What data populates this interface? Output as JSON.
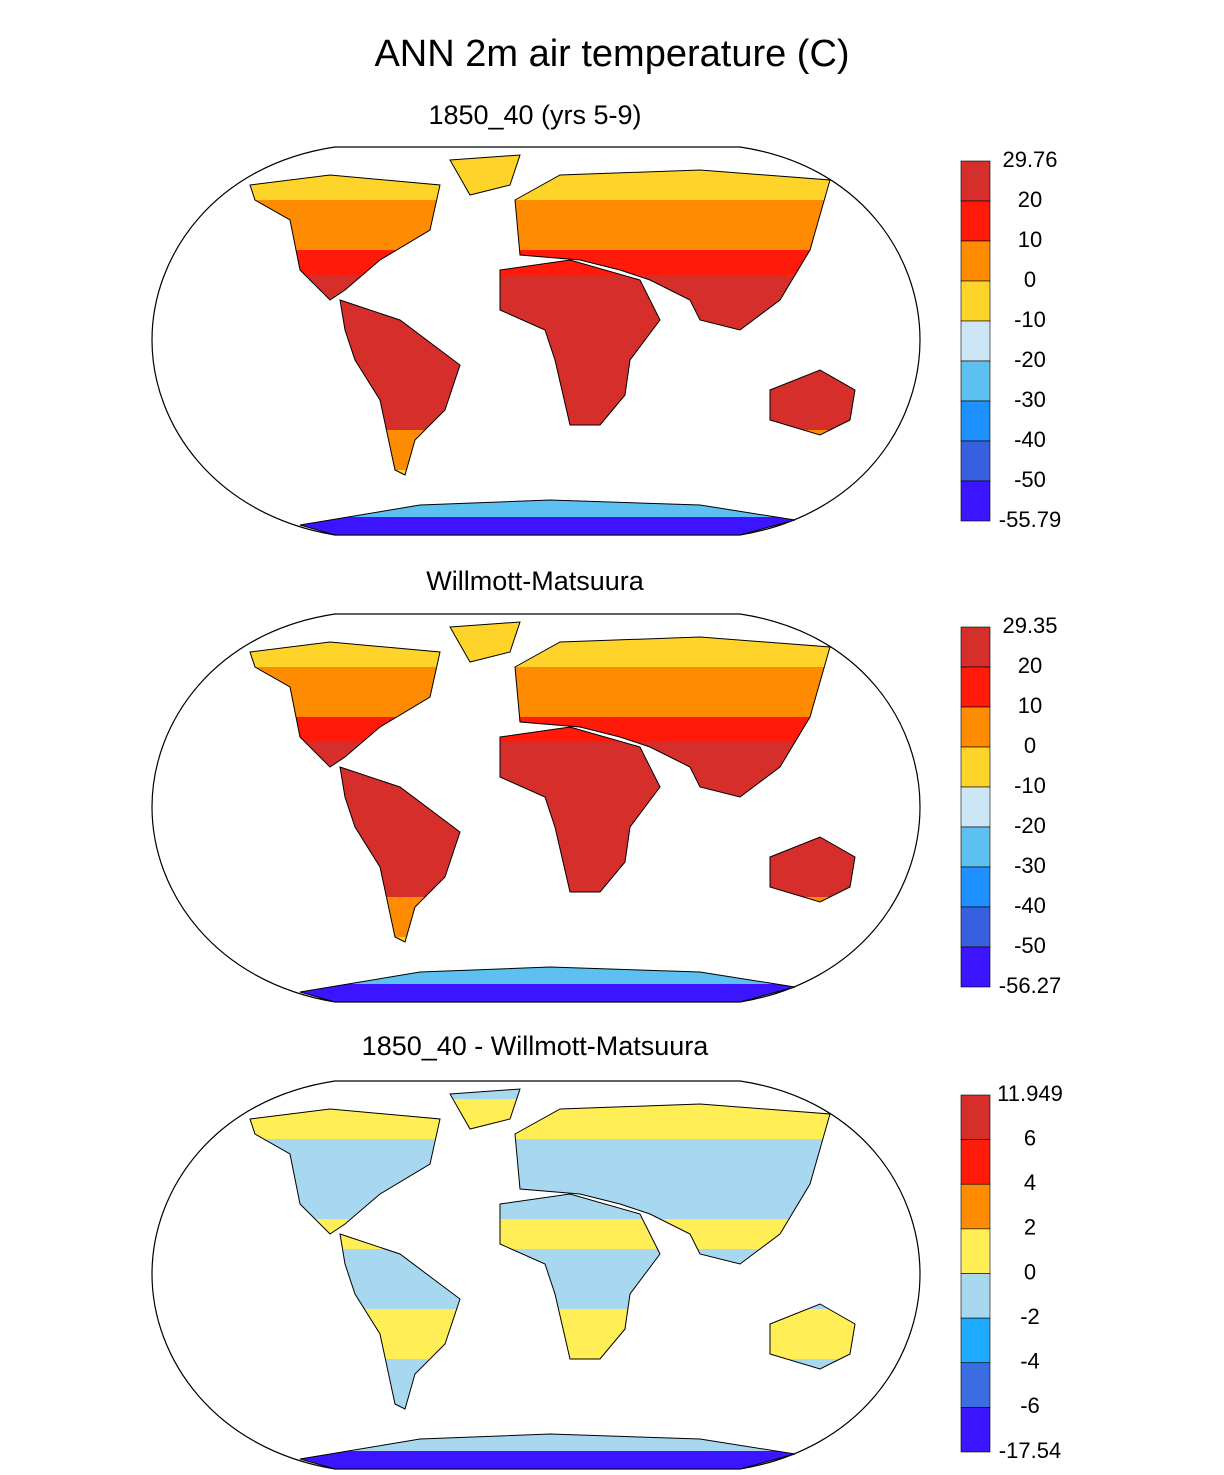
{
  "title": "ANN 2m air temperature (C)",
  "panels": [
    {
      "title": "1850_40 (yrs 5-9)",
      "colorbar": {
        "labels": [
          "29.76",
          "20",
          "10",
          "0",
          "-10",
          "-20",
          "-30",
          "-40",
          "-50",
          "-55.79"
        ],
        "colors": [
          "#d62f2b",
          "#ff1a0a",
          "#ff8c00",
          "#ffd42a",
          "#cce6f5",
          "#5cc0f0",
          "#1e90ff",
          "#3a5ee0",
          "#3c14ff"
        ]
      }
    },
    {
      "title": "Willmott-Matsuura",
      "colorbar": {
        "labels": [
          "29.35",
          "20",
          "10",
          "0",
          "-10",
          "-20",
          "-30",
          "-40",
          "-50",
          "-56.27"
        ],
        "colors": [
          "#d62f2b",
          "#ff1a0a",
          "#ff8c00",
          "#ffd42a",
          "#cce6f5",
          "#5cc0f0",
          "#1e90ff",
          "#3a5ee0",
          "#3c14ff"
        ]
      }
    },
    {
      "title": "1850_40 - Willmott-Matsuura",
      "colorbar": {
        "labels": [
          "11.949",
          "6",
          "4",
          "2",
          "0",
          "-2",
          "-4",
          "-6",
          "-17.54"
        ],
        "colors": [
          "#d62f2b",
          "#ff1a0a",
          "#ff8c00",
          "#ffee55",
          "#a8d8f0",
          "#1eaaff",
          "#3a6ee0",
          "#3c14ff"
        ]
      }
    }
  ]
}
